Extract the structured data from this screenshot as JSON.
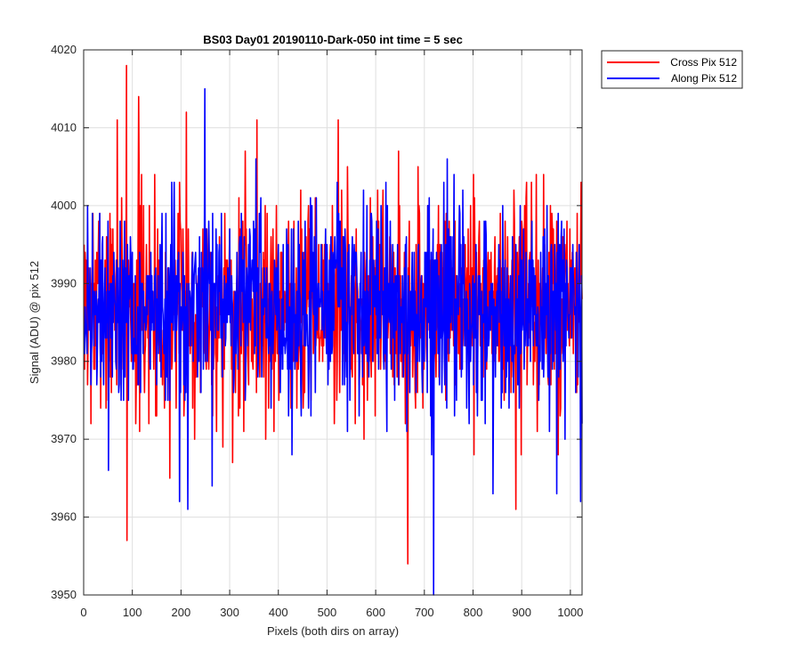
{
  "chart_data": {
    "type": "line",
    "title": "BS03 Day01 20190110-Dark-050 int time = 5 sec",
    "xlabel": "Pixels (both dirs on array)",
    "ylabel": "Signal (ADU) @ pix 512",
    "xlim": [
      0,
      1024
    ],
    "ylim": [
      3950,
      4020
    ],
    "xticks": [
      "0",
      "100",
      "200",
      "300",
      "400",
      "500",
      "600",
      "700",
      "800",
      "900",
      "1000"
    ],
    "yticks": [
      "3950",
      "3960",
      "3970",
      "3980",
      "3990",
      "4000",
      "4010",
      "4020"
    ],
    "grid": true,
    "legend_position": "outside-top-right",
    "colors": {
      "cross": "#ff0000",
      "along": "#0000ff"
    },
    "series": [
      {
        "name": "Cross Pix 512",
        "color": "#ff0000",
        "n_points": 1024,
        "mean": 3987,
        "std": 7,
        "noise_seed": 7,
        "extremes": [
          {
            "x": 87,
            "y": 4018
          },
          {
            "x": 88,
            "y": 3957
          },
          {
            "x": 112,
            "y": 4014
          },
          {
            "x": 68,
            "y": 4011
          },
          {
            "x": 210,
            "y": 4012
          },
          {
            "x": 355,
            "y": 4011
          },
          {
            "x": 522,
            "y": 4011
          },
          {
            "x": 665,
            "y": 3954
          },
          {
            "x": 887,
            "y": 3961
          },
          {
            "x": 176,
            "y": 3965
          },
          {
            "x": 305,
            "y": 3967
          }
        ]
      },
      {
        "name": "Along Pix 512",
        "color": "#0000ff",
        "n_points": 1024,
        "mean": 3987,
        "std": 6.5,
        "noise_seed": 19,
        "extremes": [
          {
            "x": 248,
            "y": 4015
          },
          {
            "x": 718,
            "y": 3950
          },
          {
            "x": 213,
            "y": 3961
          },
          {
            "x": 196,
            "y": 3962
          },
          {
            "x": 263,
            "y": 3964
          },
          {
            "x": 50,
            "y": 3966
          },
          {
            "x": 14,
            "y": 3977
          },
          {
            "x": 1020,
            "y": 3962
          },
          {
            "x": 971,
            "y": 3963
          },
          {
            "x": 840,
            "y": 3963
          }
        ]
      }
    ]
  }
}
